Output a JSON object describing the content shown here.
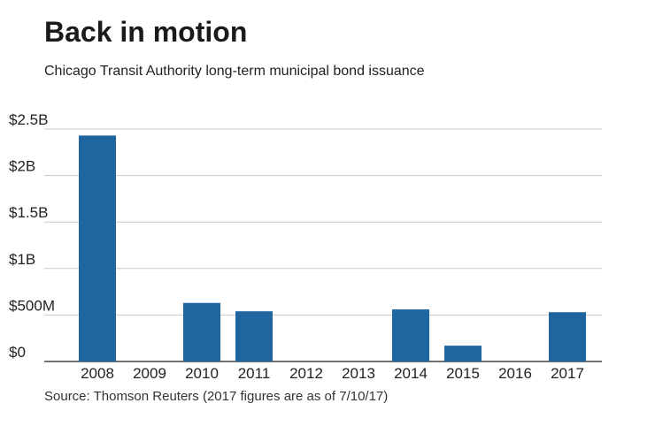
{
  "chart_data": {
    "type": "bar",
    "title": "Back in motion",
    "subtitle": "Chicago Transit Authority long-term municipal bond issuance",
    "source": "Source: Thomson Reuters (2017 figures are as of 7/10/17)",
    "categories": [
      "2008",
      "2009",
      "2010",
      "2011",
      "2012",
      "2013",
      "2014",
      "2015",
      "2016",
      "2017"
    ],
    "values": [
      2430,
      0,
      630,
      540,
      0,
      0,
      560,
      170,
      0,
      530
    ],
    "units": "millions of dollars",
    "ylim": [
      0,
      2500
    ],
    "yticks": [
      0,
      500,
      1000,
      1500,
      2000,
      2500
    ],
    "ytick_labels": [
      "$0",
      "$500M",
      "$1B",
      "$1.5B",
      "$2B",
      "$2.5B"
    ],
    "xlabel": "",
    "ylabel": "",
    "grid": true,
    "bar_color": "#1f66a1",
    "grid_color": "#c8c8c8",
    "axis_color": "#444444"
  }
}
